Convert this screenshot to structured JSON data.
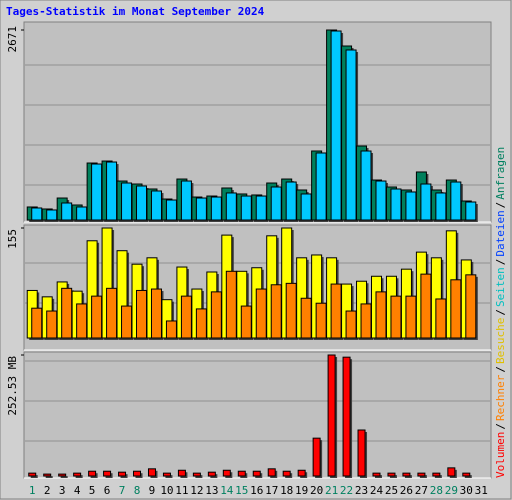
{
  "chart_data": [
    {
      "type": "bar",
      "title": "Tages-Statistik im Monat September 2024",
      "legend": [
        {
          "name": "Volumen",
          "color": "#ff0000"
        },
        {
          "name": "Rechner",
          "color": "#ff8000"
        },
        {
          "name": "Besuche",
          "color": "#e0c000"
        },
        {
          "name": "Seiten",
          "color": "#00c0c0"
        },
        {
          "name": "Dateien",
          "color": "#0040ff"
        },
        {
          "name": "Anfragen",
          "color": "#008060"
        }
      ],
      "legend_separator": "/",
      "categories": [
        "1",
        "2",
        "3",
        "4",
        "5",
        "6",
        "7",
        "8",
        "9",
        "10",
        "11",
        "12",
        "13",
        "14",
        "15",
        "16",
        "17",
        "18",
        "19",
        "20",
        "21",
        "22",
        "23",
        "24",
        "25",
        "26",
        "27",
        "28",
        "29",
        "30",
        "31"
      ],
      "series": [
        {
          "name": "Anfragen",
          "color": "#00805c",
          "values": [
            183,
            155,
            309,
            211,
            801,
            829,
            548,
            506,
            436,
            295,
            576,
            323,
            337,
            450,
            366,
            352,
            520,
            576,
            422,
            970,
            2671,
            2446,
            1040,
            562,
            464,
            422,
            675,
            422,
            562,
            267,
            null
          ]
        },
        {
          "name": "Dateien",
          "color": "#00c8ff",
          "values": [
            169,
            141,
            239,
            183,
            787,
            815,
            520,
            478,
            408,
            281,
            548,
            309,
            323,
            380,
            337,
            337,
            464,
            534,
            366,
            942,
            2657,
            2390,
            970,
            548,
            436,
            394,
            506,
            380,
            534,
            253,
            null
          ]
        }
      ],
      "ylim": [
        0,
        2671
      ],
      "yticks": [
        2671
      ]
    },
    {
      "type": "bar",
      "categories": [
        "1",
        "2",
        "3",
        "4",
        "5",
        "6",
        "7",
        "8",
        "9",
        "10",
        "11",
        "12",
        "13",
        "14",
        "15",
        "16",
        "17",
        "18",
        "19",
        "20",
        "21",
        "22",
        "23",
        "24",
        "25",
        "26",
        "27",
        "28",
        "29",
        "30",
        "31"
      ],
      "series": [
        {
          "name": "Besuche",
          "color": "#ffff00",
          "values": [
            67,
            58,
            79,
            66,
            137,
            155,
            123,
            104,
            113,
            54,
            100,
            69,
            93,
            145,
            94,
            99,
            144,
            155,
            113,
            117,
            113,
            76,
            80,
            87,
            87,
            97,
            121,
            113,
            151,
            110,
            null
          ]
        },
        {
          "name": "Rechner",
          "color": "#ff8000",
          "values": [
            42,
            38,
            70,
            48,
            59,
            70,
            45,
            67,
            69,
            24,
            59,
            41,
            65,
            94,
            45,
            69,
            75,
            77,
            56,
            49,
            76,
            38,
            48,
            65,
            59,
            59,
            90,
            55,
            82,
            89,
            null
          ]
        }
      ],
      "ylim": [
        0,
        155
      ],
      "yticks": [
        155
      ]
    },
    {
      "type": "bar",
      "categories": [
        "1",
        "2",
        "3",
        "4",
        "5",
        "6",
        "7",
        "8",
        "9",
        "10",
        "11",
        "12",
        "13",
        "14",
        "15",
        "16",
        "17",
        "18",
        "19",
        "20",
        "21",
        "22",
        "23",
        "24",
        "25",
        "26",
        "27",
        "28",
        "29",
        "30",
        "31"
      ],
      "highlight_categories": [
        "1",
        "7",
        "8",
        "14",
        "15",
        "21",
        "22",
        "28",
        "29"
      ],
      "highlight_color": "#008060",
      "series": [
        {
          "name": "Volumen",
          "color": "#ff0000",
          "values": [
            6,
            4,
            4,
            6,
            10,
            10,
            8,
            10,
            15,
            6,
            12,
            6,
            8,
            12,
            10,
            10,
            15,
            10,
            12,
            79,
            252.53,
            248,
            96,
            6,
            6,
            6,
            6,
            6,
            17,
            6,
            null
          ]
        }
      ],
      "ylim": [
        0,
        252.53
      ],
      "yticks": [
        {
          "value": 252.53,
          "label": "252.53 MB"
        }
      ]
    }
  ]
}
